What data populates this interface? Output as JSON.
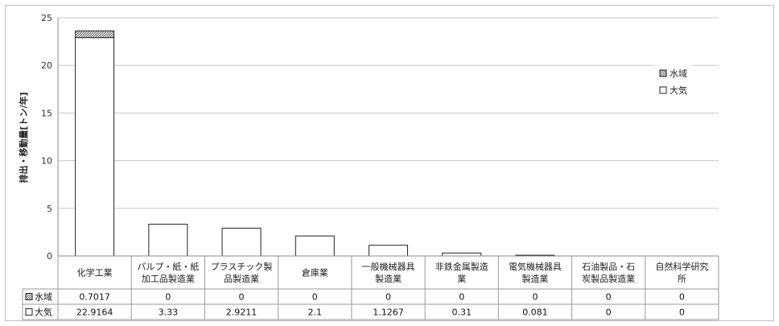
{
  "chart_data": {
    "type": "bar",
    "stacked": true,
    "ylabel": "排出・移動量[トン/年]",
    "ylim": [
      0,
      25
    ],
    "yticks": [
      0,
      5,
      10,
      15,
      20,
      25
    ],
    "grid": true,
    "legend_position": "right",
    "categories": [
      [
        "化学工業"
      ],
      [
        "パルプ・紙・紙",
        "加工品製造業"
      ],
      [
        "プラスチック製",
        "品製造業"
      ],
      [
        "倉庫業"
      ],
      [
        "一般機械器具",
        "製造業"
      ],
      [
        "非鉄金属製造",
        "業"
      ],
      [
        "電気機械器具",
        "製造業"
      ],
      [
        "石油製品・石",
        "炭製品製造業"
      ],
      [
        "自然科学研究",
        "所"
      ]
    ],
    "series": [
      {
        "name": "大気",
        "color": "#ffffff",
        "values": [
          22.9164,
          3.33,
          2.9211,
          2.1,
          1.1267,
          0.31,
          0.081,
          0,
          0
        ],
        "display": [
          "22.9164",
          "3.33",
          "2.9211",
          "2.1",
          "1.1267",
          "0.31",
          "0.081",
          "0",
          "0"
        ]
      },
      {
        "name": "水域",
        "color": "#bdbdbd",
        "pattern": "hatch",
        "values": [
          0.7017,
          0,
          0,
          0,
          0,
          0,
          0,
          0,
          0
        ],
        "display": [
          "0.7017",
          "0",
          "0",
          "0",
          "0",
          "0",
          "0",
          "0",
          "0"
        ]
      }
    ],
    "legend": [
      "水域",
      "大気"
    ],
    "table_rows": [
      {
        "label": "水域",
        "series": 1
      },
      {
        "label": "大気",
        "series": 0
      }
    ]
  }
}
